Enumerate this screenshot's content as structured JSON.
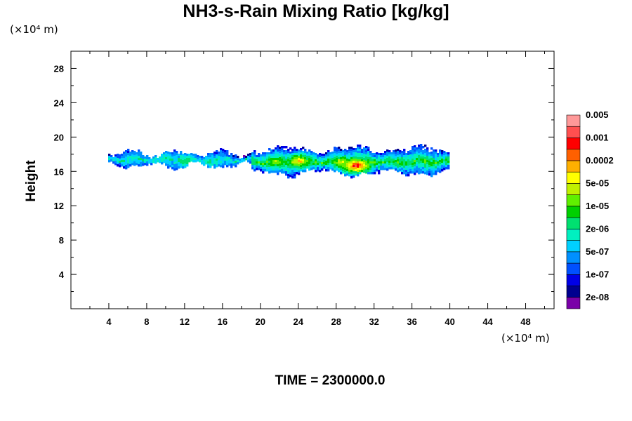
{
  "chart_data": {
    "type": "heatmap",
    "title": "NH3-s-Rain Mixing Ratio [kg/kg]",
    "ylabel": "Height",
    "xlabel": "",
    "x_units_label": "(×10⁴ m)",
    "y_units_label": "(×10⁴ m)",
    "footer": "TIME = 2300000.0",
    "xlim": [
      0,
      51
    ],
    "ylim": [
      0,
      30
    ],
    "x_ticks": [
      "4",
      "8",
      "12",
      "16",
      "20",
      "24",
      "28",
      "32",
      "36",
      "40",
      "44",
      "48"
    ],
    "x_tick_values": [
      4,
      8,
      12,
      16,
      20,
      24,
      28,
      32,
      36,
      40,
      44,
      48
    ],
    "y_ticks": [
      "4",
      "8",
      "12",
      "16",
      "20",
      "24",
      "28"
    ],
    "y_tick_values": [
      4,
      8,
      12,
      16,
      20,
      24,
      28
    ],
    "colorbar": {
      "colors": [
        "#7a00a8",
        "#00008f",
        "#0000e6",
        "#0050ff",
        "#0090ff",
        "#00d0ff",
        "#00f0c0",
        "#00e070",
        "#00d000",
        "#60f000",
        "#c0f000",
        "#ffff00",
        "#ffb000",
        "#ff6000",
        "#ff0000",
        "#ff5050",
        "#ff9999"
      ],
      "labels": [
        "2e-08",
        "1e-07",
        "5e-07",
        "2e-06",
        "1e-05",
        "5e-05",
        "0.0002",
        "0.001",
        "0.005"
      ]
    },
    "band": {
      "x_range": [
        4,
        39.8
      ],
      "y_center": 17.4,
      "hotspots": [
        {
          "x": 24,
          "y": 17.3,
          "level": 11
        },
        {
          "x": 30,
          "y": 16.8,
          "level": 14
        },
        {
          "x": 28.5,
          "y": 17.2,
          "level": 10
        },
        {
          "x": 21.5,
          "y": 17.2,
          "level": 9
        },
        {
          "x": 34,
          "y": 17.2,
          "level": 7
        },
        {
          "x": 12,
          "y": 17.4,
          "level": 7
        },
        {
          "x": 9.5,
          "y": 17.6,
          "level": 6
        },
        {
          "x": 14.5,
          "y": 17.2,
          "level": 6
        },
        {
          "x": 6.5,
          "y": 17.6,
          "level": 5
        },
        {
          "x": 37,
          "y": 17.6,
          "level": 6
        }
      ]
    }
  }
}
